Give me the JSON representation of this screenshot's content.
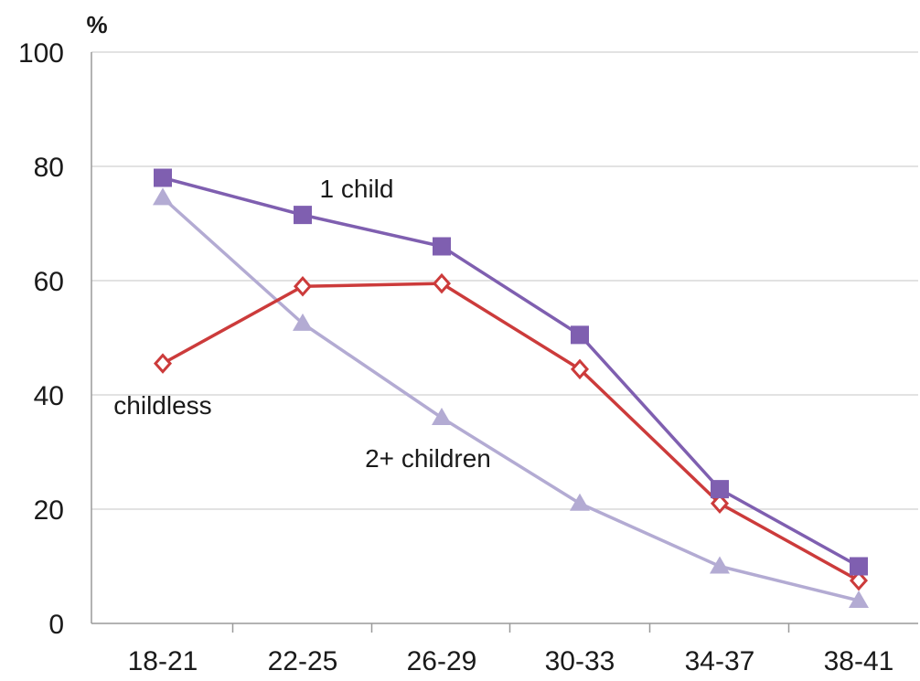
{
  "chart_data": {
    "type": "line",
    "title": "",
    "xlabel": "",
    "ylabel": "%",
    "categories": [
      "18-21",
      "22-25",
      "26-29",
      "30-33",
      "34-37",
      "38-41"
    ],
    "ylim": [
      0,
      100
    ],
    "yticks": [
      "0",
      "20",
      "40",
      "60",
      "80",
      "100"
    ],
    "grid": true,
    "legend": "none (inline series labels)",
    "series": [
      {
        "name": "1 child",
        "color": "#7f5fb0",
        "marker": "filled-square",
        "values": [
          78,
          71.5,
          66,
          50.5,
          23.5,
          10
        ]
      },
      {
        "name": "childless",
        "color": "#cc3b3b",
        "marker": "hollow-diamond",
        "values": [
          45.5,
          59,
          59.5,
          44.5,
          21,
          7.5
        ]
      },
      {
        "name": "2+ children",
        "color": "#b3abd3",
        "marker": "filled-triangle",
        "values": [
          74.5,
          52.5,
          36,
          21,
          10,
          4
        ]
      }
    ]
  }
}
